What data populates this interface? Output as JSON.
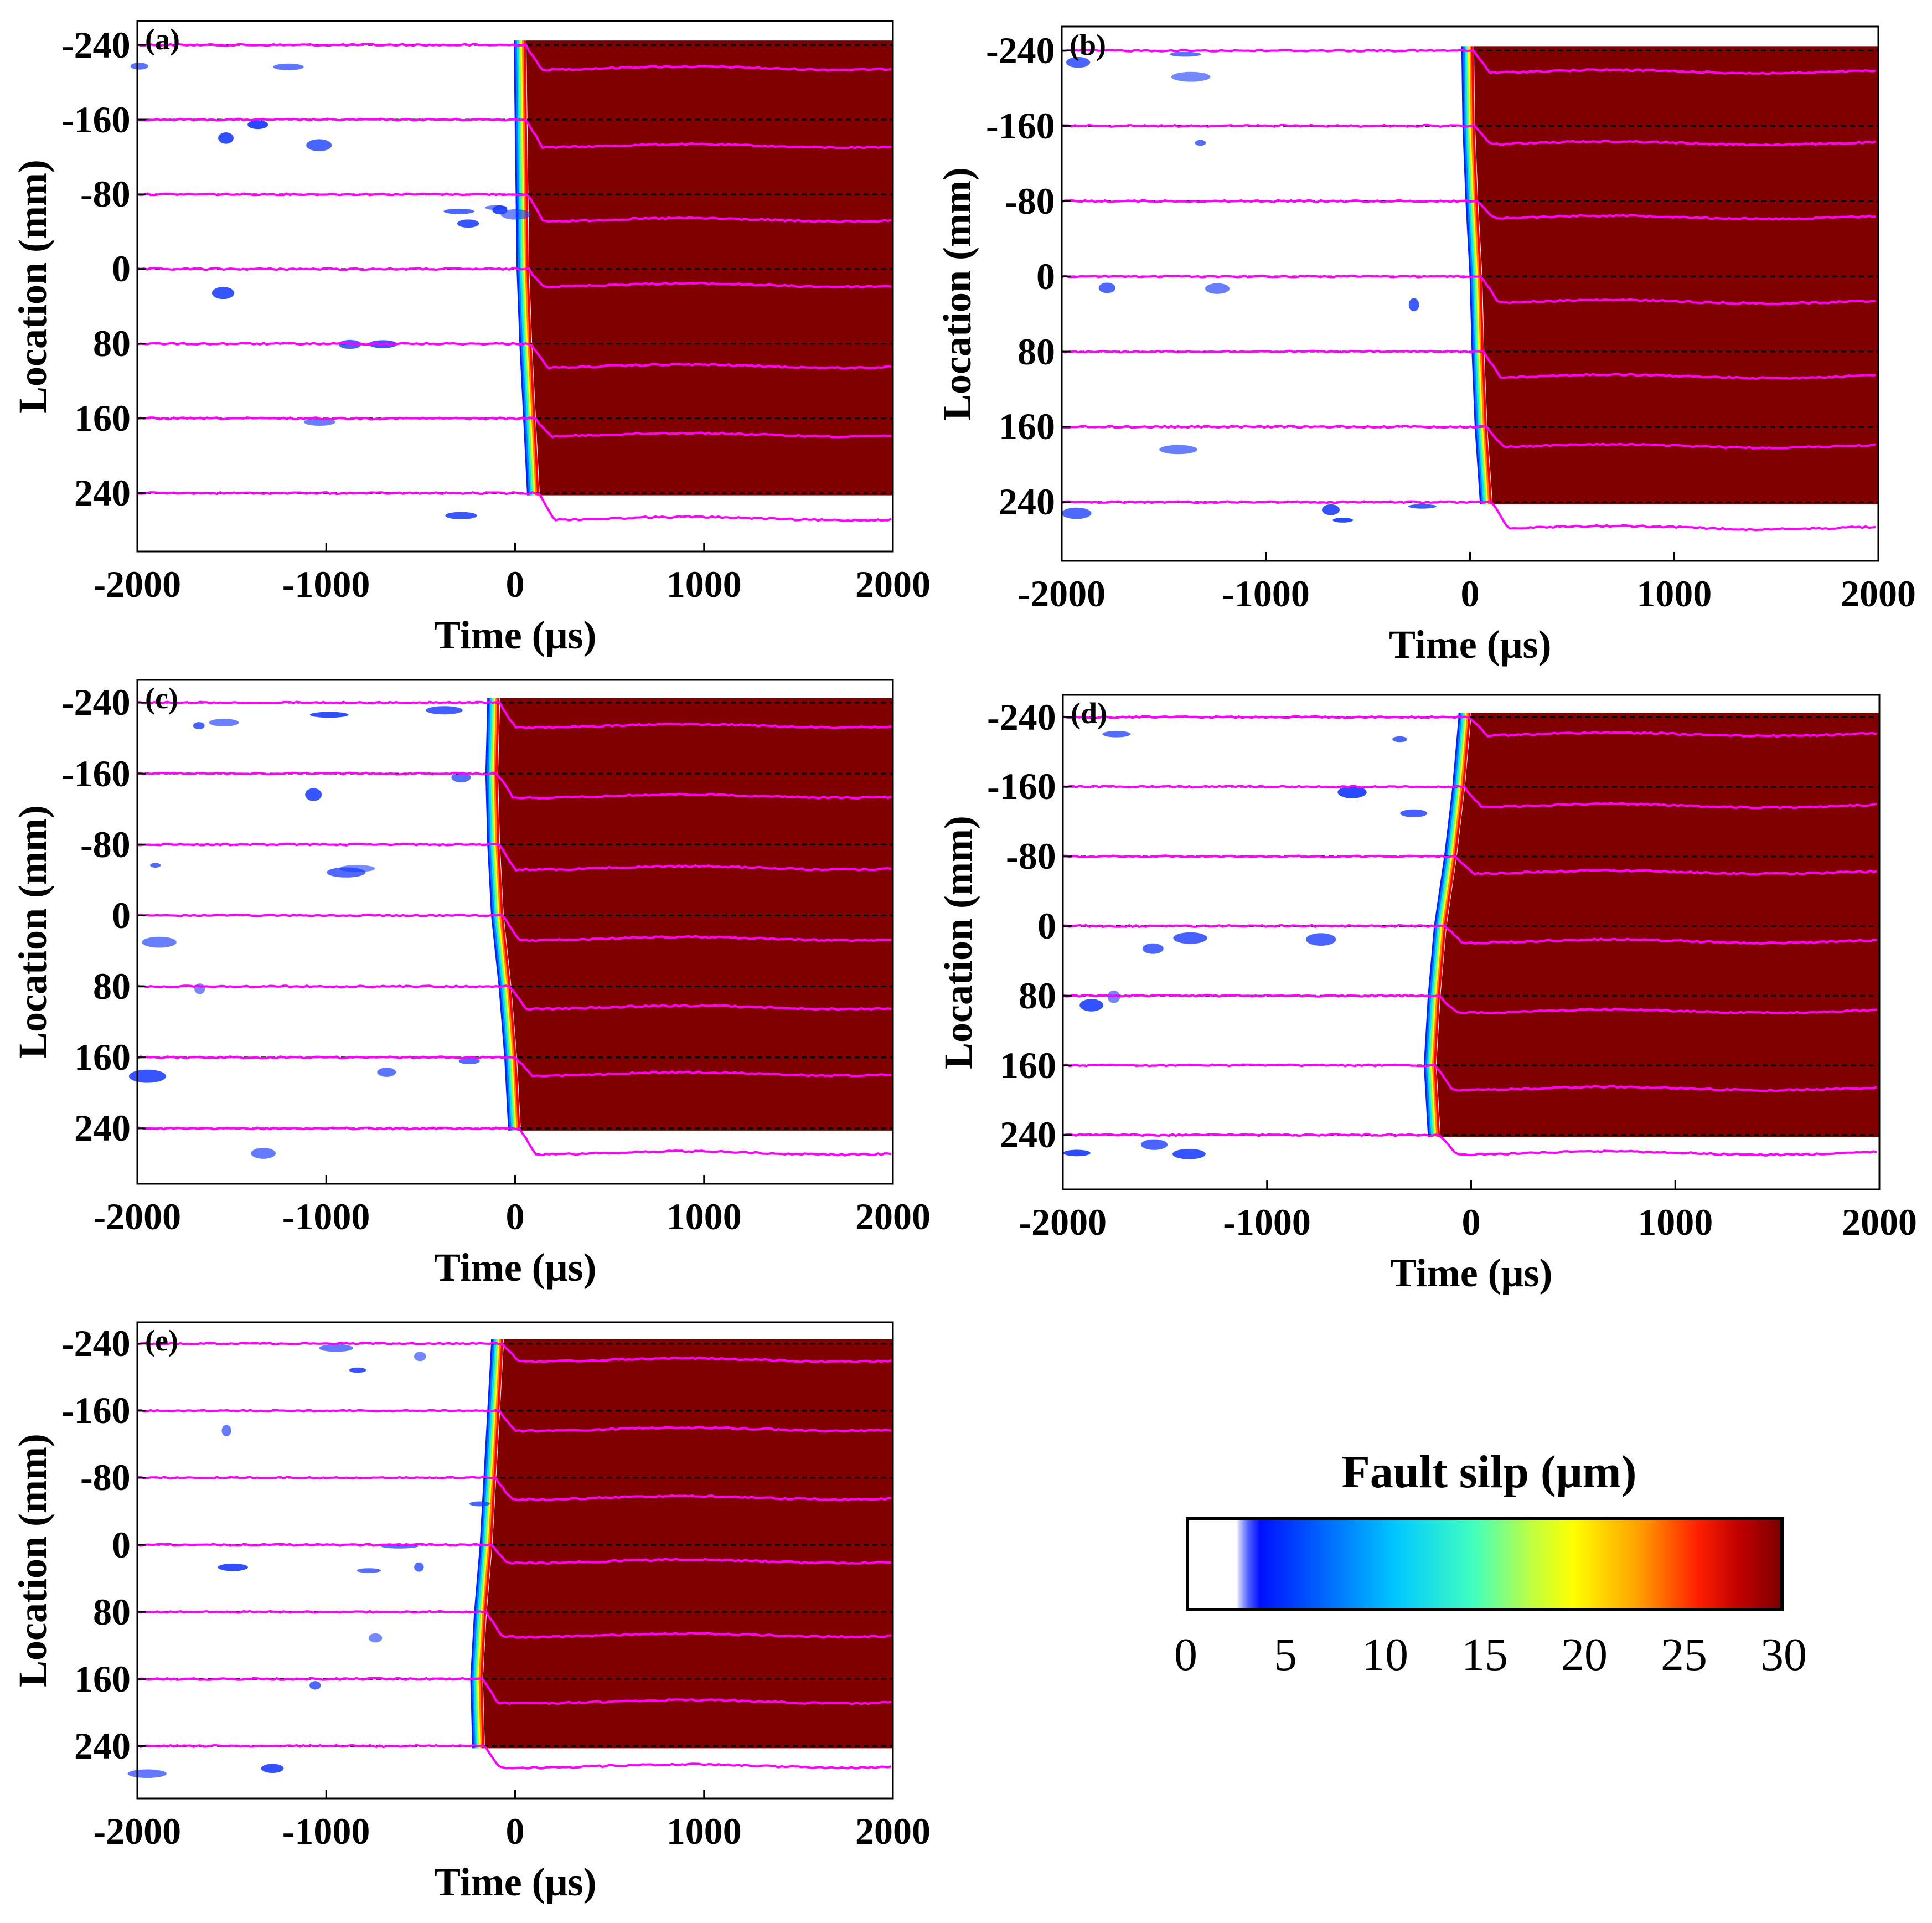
{
  "chart_data": [
    {
      "type": "heatmap",
      "panel": "(a)",
      "xlabel": "Time (μs)",
      "ylabel": "Location (mm)",
      "xlim": [
        -2000,
        2000
      ],
      "ylim": [
        -240,
        240
      ],
      "xticks": [
        "-2000",
        "-1000",
        "0",
        "1000",
        "2000"
      ],
      "yticks": [
        "-240",
        "-160",
        "-80",
        "0",
        "80",
        "160",
        "240"
      ],
      "rupture_front_time_us": [
        60,
        65,
        70,
        75,
        90,
        110,
        130
      ]
    },
    {
      "type": "heatmap",
      "panel": "(b)",
      "xlabel": "Time (μs)",
      "ylabel": "Location (mm)",
      "xlim": [
        -2000,
        2000
      ],
      "ylim": [
        -240,
        240
      ],
      "xticks": [
        "-2000",
        "-1000",
        "0",
        "1000",
        "2000"
      ],
      "yticks": [
        "-240",
        "-160",
        "-80",
        "0",
        "80",
        "160",
        "240"
      ],
      "rupture_front_time_us": [
        20,
        25,
        40,
        60,
        70,
        85,
        110
      ]
    },
    {
      "type": "heatmap",
      "panel": "(c)",
      "xlabel": "Time (μs)",
      "ylabel": "Location (mm)",
      "xlim": [
        -2000,
        2000
      ],
      "ylim": [
        -240,
        240
      ],
      "xticks": [
        "-2000",
        "-1000",
        "0",
        "1000",
        "2000"
      ],
      "yticks": [
        "-240",
        "-160",
        "-80",
        "0",
        "80",
        "160",
        "240"
      ],
      "rupture_front_time_us": [
        -80,
        -90,
        -80,
        -60,
        -20,
        10,
        30
      ]
    },
    {
      "type": "heatmap",
      "panel": "(d)",
      "xlabel": "Time (μs)",
      "ylabel": "Location (mm)",
      "xlim": [
        -2000,
        2000
      ],
      "ylim": [
        -240,
        240
      ],
      "xticks": [
        "-2000",
        "-1000",
        "0",
        "1000",
        "2000"
      ],
      "yticks": [
        "-240",
        "-160",
        "-80",
        "0",
        "80",
        "160",
        "240"
      ],
      "rupture_front_time_us": [
        0,
        -30,
        -70,
        -120,
        -150,
        -170,
        -150
      ]
    },
    {
      "type": "heatmap",
      "panel": "(e)",
      "xlabel": "Time (μs)",
      "ylabel": "Location (mm)",
      "xlim": [
        -2000,
        2000
      ],
      "ylim": [
        -240,
        240
      ],
      "xticks": [
        "-2000",
        "-1000",
        "0",
        "1000",
        "2000"
      ],
      "yticks": [
        "-240",
        "-160",
        "-80",
        "0",
        "80",
        "160",
        "240"
      ],
      "rupture_front_time_us": [
        -60,
        -80,
        -100,
        -120,
        -150,
        -170,
        -160
      ]
    }
  ],
  "colorbar": {
    "title": "Fault silp (μm)",
    "ticks": [
      "0",
      "5",
      "10",
      "15",
      "20",
      "25",
      "30"
    ],
    "range": [
      0,
      30
    ]
  },
  "colors": {
    "slip_max": "#800000",
    "trace": "#ff00ff",
    "baseline": "#000000",
    "front_blue": "#1a3cff"
  }
}
